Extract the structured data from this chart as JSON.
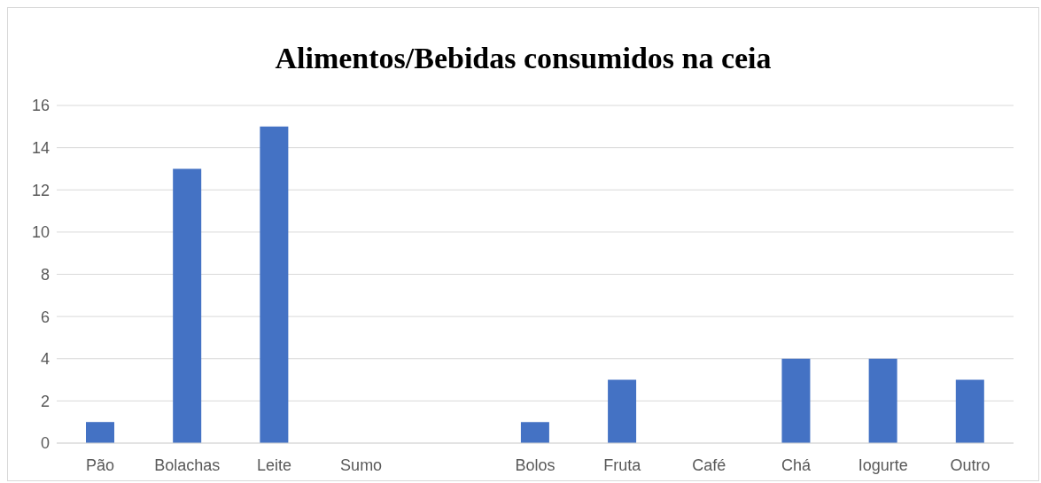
{
  "chart_data": {
    "type": "bar",
    "title": "Alimentos/Bebidas consumidos na ceia",
    "categories": [
      "Pão",
      "Bolachas",
      "Leite",
      "Sumo",
      null,
      "Bolos",
      "Fruta",
      "Café",
      "Chá",
      "Iogurte",
      "Outro"
    ],
    "values": [
      1,
      13,
      15,
      0,
      0,
      1,
      3,
      0,
      4,
      4,
      3
    ],
    "color": "#4472c4",
    "ylim": [
      0,
      16
    ],
    "yticks": [
      0,
      2,
      4,
      6,
      8,
      10,
      12,
      14,
      16
    ],
    "grid": "y"
  }
}
